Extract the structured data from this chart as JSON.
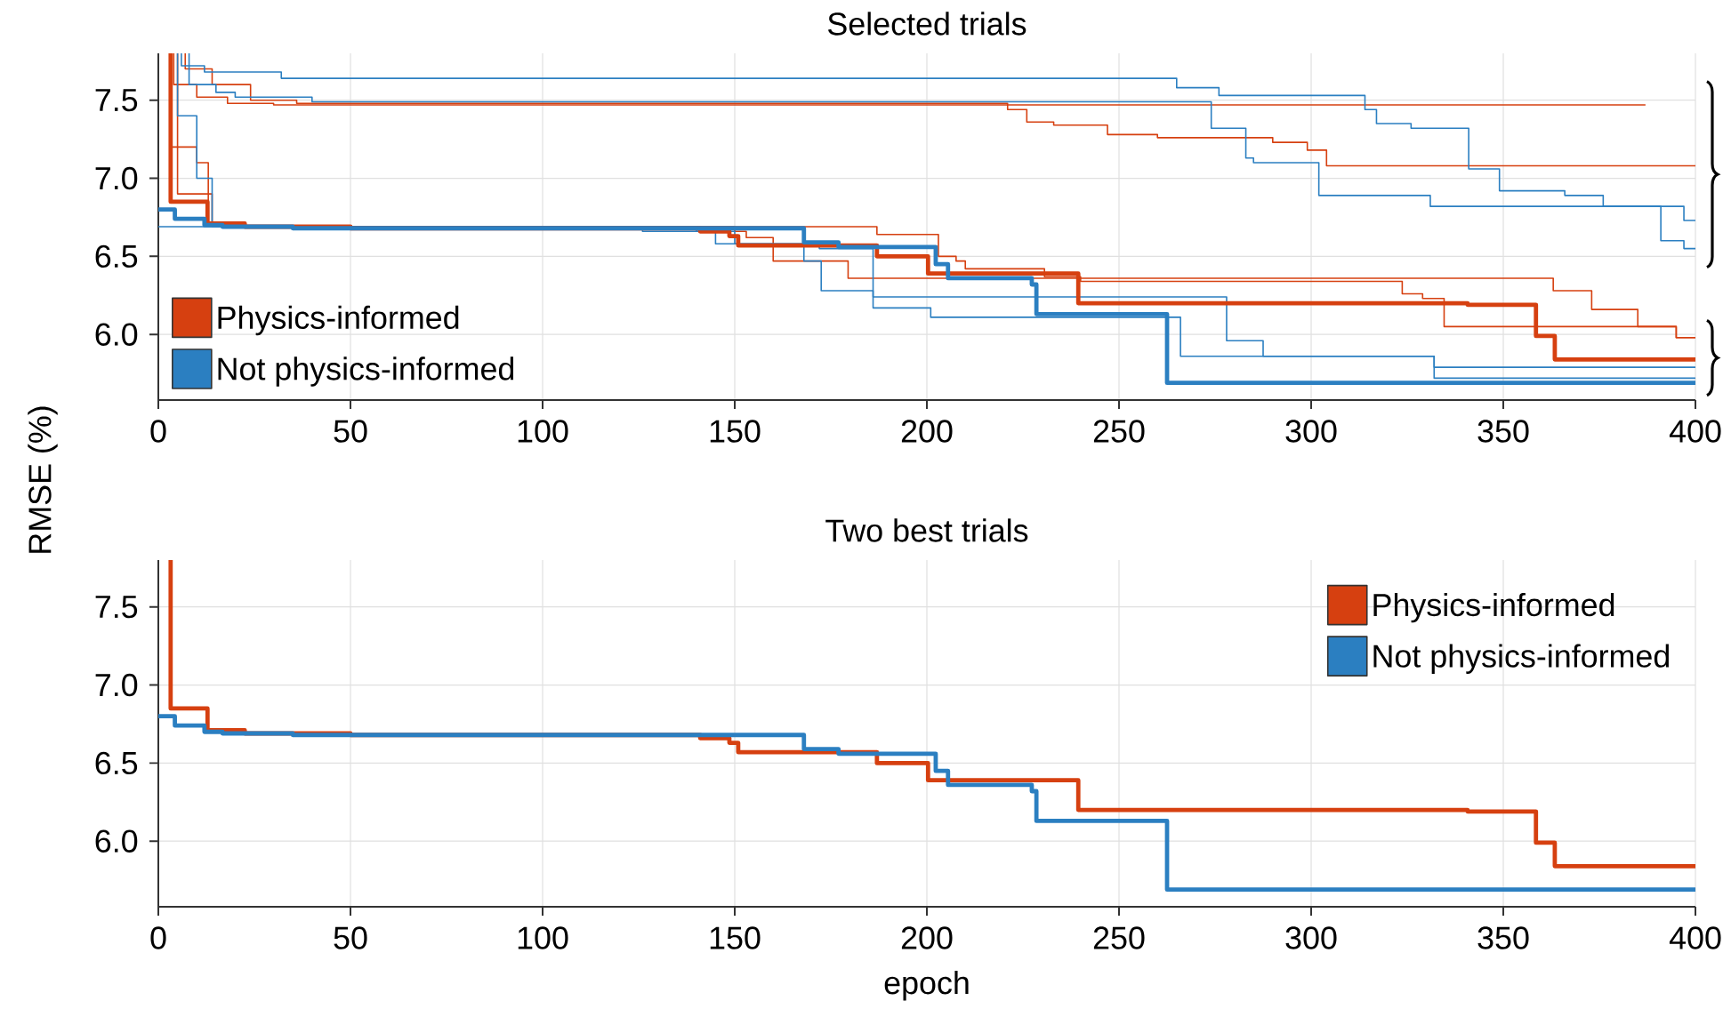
{
  "chart_data": [
    {
      "type": "step",
      "title": "Selected trials",
      "ylabel": "RMSE (%)",
      "xlim": [
        0,
        400
      ],
      "ylim": [
        5.58,
        7.8
      ],
      "xticks": [
        0,
        50,
        100,
        150,
        200,
        250,
        300,
        350,
        400
      ],
      "yticks": [
        {
          "value": 6,
          "label": "6.0"
        },
        {
          "value": 6.5,
          "label": "6.5"
        },
        {
          "value": 7,
          "label": "7.0"
        },
        {
          "value": 7.5,
          "label": "7.5"
        }
      ],
      "grid": true,
      "legend": "bottom left",
      "series": [
        {
          "color": "#d64010",
          "x": [
            4,
            4,
            10,
            18,
            30,
            387
          ],
          "values": [
            7.8,
            7.6,
            7.52,
            7.48,
            7.47,
            7.47
          ]
        },
        {
          "color": "#d64010",
          "x": [
            7,
            7,
            14,
            24,
            36,
            221,
            226,
            233,
            247,
            260,
            290,
            299,
            304,
            400
          ],
          "values": [
            7.8,
            7.7,
            7.6,
            7.5,
            7.48,
            7.44,
            7.36,
            7.34,
            7.28,
            7.26,
            7.23,
            7.18,
            7.08,
            7.08
          ]
        },
        {
          "color": "#2b7fc1",
          "x": [
            6,
            6,
            12,
            32,
            265,
            276,
            314,
            317,
            326,
            341,
            349,
            366,
            376,
            397,
            400
          ],
          "values": [
            7.8,
            7.72,
            7.68,
            7.64,
            7.58,
            7.53,
            7.44,
            7.35,
            7.32,
            7.06,
            6.92,
            6.89,
            6.82,
            6.73,
            6.73
          ]
        },
        {
          "color": "#2b7fc1",
          "x": [
            8,
            8,
            15,
            20,
            40,
            274,
            283,
            285,
            302,
            331,
            391,
            397,
            400
          ],
          "values": [
            7.8,
            7.6,
            7.55,
            7.52,
            7.49,
            7.32,
            7.13,
            7.1,
            6.89,
            6.82,
            6.6,
            6.55,
            6.55
          ]
        },
        {
          "color": "#d64010",
          "x": [
            3,
            3,
            10,
            13,
            18,
            150,
            153,
            160,
            179.5,
            363,
            373,
            385,
            395,
            400
          ],
          "values": [
            7.8,
            7.2,
            7.1,
            6.72,
            6.69,
            6.66,
            6.62,
            6.47,
            6.36,
            6.28,
            6.16,
            6.05,
            5.98,
            5.98
          ]
        },
        {
          "color": "#d64010",
          "x": [
            5,
            5,
            14,
            20,
            187,
            203,
            207.6,
            210,
            230.6,
            240,
            323.7,
            329,
            334.6,
            395,
            400
          ],
          "values": [
            7.8,
            6.9,
            6.72,
            6.69,
            6.64,
            6.5,
            6.47,
            6.42,
            6.37,
            6.34,
            6.26,
            6.23,
            6.05,
            5.98,
            5.98
          ]
        },
        {
          "color": "#2b7fc1",
          "x": [
            5,
            5,
            10,
            14,
            126,
            145,
            168,
            172.5,
            186,
            278,
            287.5,
            332,
            400
          ],
          "values": [
            7.8,
            7.4,
            7.0,
            6.69,
            6.66,
            6.58,
            6.47,
            6.28,
            6.24,
            5.96,
            5.86,
            5.79,
            5.79
          ]
        },
        {
          "color": "#2b7fc1",
          "x": [
            0,
            140,
            150,
            172,
            186,
            201,
            266,
            332,
            400
          ],
          "values": [
            6.69,
            6.66,
            6.58,
            6.55,
            6.17,
            6.11,
            5.86,
            5.72,
            5.72
          ]
        },
        {
          "name": "Physics-informed",
          "color": "#d64010",
          "x": [
            3.2,
            3.2,
            12.8,
            22.5,
            50,
            141,
            148.6,
            150.9,
            187,
            200.3,
            239.4,
            340.7,
            358.5,
            363.4,
            400
          ],
          "values": [
            7.8,
            6.85,
            6.71,
            6.69,
            6.68,
            6.66,
            6.63,
            6.57,
            6.5,
            6.39,
            6.2,
            6.19,
            5.99,
            5.84,
            5.84
          ]
        },
        {
          "name": "Not physics-informed",
          "color": "#2b7fc1",
          "x": [
            0,
            4.3,
            12,
            16.7,
            35,
            168,
            177,
            202.3,
            205.5,
            227.3,
            228.5,
            262.5,
            400
          ],
          "values": [
            6.8,
            6.74,
            6.7,
            6.69,
            6.68,
            6.59,
            6.56,
            6.45,
            6.36,
            6.32,
            6.13,
            5.69,
            5.69
          ]
        }
      ]
    },
    {
      "type": "step",
      "title": "Two best trials",
      "xlabel": "epoch",
      "xlim": [
        0,
        400
      ],
      "ylim": [
        5.58,
        7.8
      ],
      "xticks": [
        0,
        50,
        100,
        150,
        200,
        250,
        300,
        350,
        400
      ],
      "yticks": [
        {
          "value": 6,
          "label": "6.0"
        },
        {
          "value": 6.5,
          "label": "6.5"
        },
        {
          "value": 7,
          "label": "7.0"
        },
        {
          "value": 7.5,
          "label": "7.5"
        }
      ],
      "grid": true,
      "legend": "top right",
      "series": [
        {
          "name": "Physics-informed",
          "color": "#d64010",
          "x": [
            3.2,
            3.2,
            12.8,
            22.5,
            50,
            141,
            148.6,
            150.9,
            187,
            200.3,
            239.4,
            340.7,
            358.5,
            363.4,
            400
          ],
          "values": [
            7.8,
            6.85,
            6.71,
            6.69,
            6.68,
            6.66,
            6.63,
            6.57,
            6.5,
            6.39,
            6.2,
            6.19,
            5.99,
            5.84,
            5.84
          ]
        },
        {
          "name": "Not physics-informed",
          "color": "#2b7fc1",
          "x": [
            0,
            4.3,
            12,
            16.7,
            35,
            168,
            177,
            202.3,
            205.5,
            227.3,
            228.5,
            262.5,
            400
          ],
          "values": [
            6.8,
            6.74,
            6.7,
            6.69,
            6.68,
            6.59,
            6.56,
            6.45,
            6.36,
            6.32,
            6.13,
            5.69,
            5.69
          ]
        }
      ]
    }
  ]
}
